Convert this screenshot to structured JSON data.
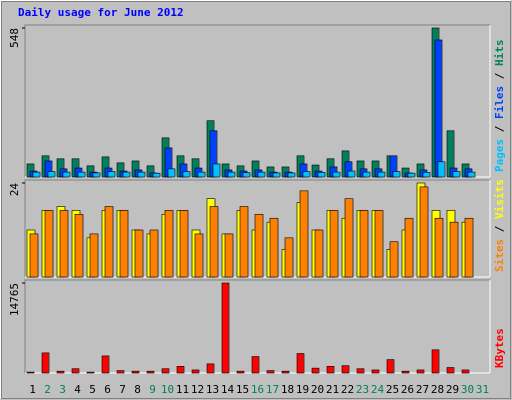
{
  "chart_data": [
    {
      "type": "bar",
      "title": "Daily usage for June 2012",
      "ylim": [
        0,
        548
      ],
      "yticks": [
        548
      ],
      "legend_separator": " / ",
      "series": [
        {
          "name": "Pages",
          "color": "#00c0ff",
          "values": [
            18,
            20,
            18,
            18,
            15,
            20,
            18,
            18,
            14,
            30,
            20,
            18,
            48,
            18,
            16,
            18,
            15,
            15,
            20,
            17,
            18,
            22,
            18,
            18,
            20,
            14,
            17,
            56,
            20,
            18,
            null
          ]
        },
        {
          "name": "Files",
          "color": "#0040ff",
          "values": [
            22,
            59,
            30,
            33,
            18,
            33,
            22,
            26,
            15,
            107,
            48,
            33,
            170,
            26,
            22,
            26,
            18,
            18,
            48,
            22,
            37,
            56,
            30,
            30,
            78,
            15,
            26,
            504,
            33,
            30,
            null
          ]
        },
        {
          "name": "Hits",
          "color": "#00805c",
          "values": [
            48,
            78,
            67,
            67,
            41,
            74,
            52,
            59,
            41,
            144,
            78,
            67,
            207,
            48,
            41,
            59,
            37,
            37,
            78,
            44,
            67,
            96,
            59,
            59,
            78,
            33,
            48,
            548,
            170,
            48,
            null
          ]
        }
      ]
    },
    {
      "type": "bar",
      "ylim": [
        0,
        24
      ],
      "yticks": [
        24
      ],
      "legend_separator": " / ",
      "series": [
        {
          "name": "Sites",
          "color": "#ff8000",
          "values": [
            11,
            17,
            17,
            16,
            11,
            18,
            17,
            12,
            12,
            17,
            17,
            11,
            18,
            11,
            18,
            16,
            15,
            10,
            22,
            12,
            17,
            20,
            17,
            17,
            9,
            15,
            23,
            15,
            14,
            15,
            null
          ]
        },
        {
          "name": "Visits",
          "color": "#ffff00",
          "values": [
            12,
            17,
            18,
            17,
            10,
            17,
            17,
            12,
            11,
            16,
            17,
            12,
            20,
            11,
            17,
            12,
            14,
            7,
            19,
            12,
            17,
            15,
            17,
            17,
            7,
            12,
            24,
            17,
            17,
            14,
            null
          ]
        }
      ]
    },
    {
      "type": "bar",
      "ylim": [
        0,
        14765
      ],
      "yticks": [
        14765
      ],
      "categories": [
        "1",
        "2",
        "3",
        "4",
        "5",
        "6",
        "7",
        "8",
        "9",
        "10",
        "11",
        "12",
        "13",
        "14",
        "15",
        "16",
        "17",
        "18",
        "19",
        "20",
        "21",
        "22",
        "23",
        "24",
        "25",
        "26",
        "27",
        "28",
        "29",
        "30",
        "31"
      ],
      "category_colors": [
        "#000000",
        "#00805c",
        "#00805c",
        "#000000",
        "#000000",
        "#000000",
        "#000000",
        "#000000",
        "#00805c",
        "#00805c",
        "#000000",
        "#000000",
        "#000000",
        "#000000",
        "#000000",
        "#00805c",
        "#00805c",
        "#000000",
        "#000000",
        "#000000",
        "#000000",
        "#000000",
        "#00805c",
        "#00805c",
        "#000000",
        "#000000",
        "#000000",
        "#000000",
        "#000000",
        "#00805c",
        "#00805c"
      ],
      "series": [
        {
          "name": "KBytes",
          "color": "#ff0000",
          "values": [
            150,
            3300,
            300,
            700,
            150,
            2800,
            400,
            300,
            300,
            700,
            1100,
            500,
            1500,
            14765,
            300,
            2700,
            400,
            300,
            3200,
            800,
            1100,
            1200,
            700,
            500,
            2200,
            300,
            500,
            3800,
            900,
            500,
            null
          ]
        }
      ]
    }
  ]
}
